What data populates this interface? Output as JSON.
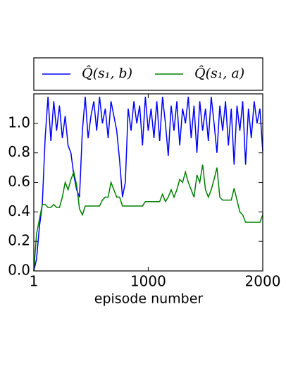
{
  "chart_data": {
    "type": "line",
    "xlabel": "episode number",
    "x": [
      1,
      25,
      50,
      75,
      100,
      125,
      150,
      175,
      200,
      225,
      250,
      275,
      300,
      325,
      350,
      375,
      400,
      425,
      450,
      475,
      500,
      525,
      550,
      575,
      600,
      625,
      650,
      675,
      700,
      725,
      750,
      775,
      800,
      825,
      850,
      875,
      900,
      925,
      950,
      975,
      1000,
      1025,
      1050,
      1075,
      1100,
      1125,
      1150,
      1175,
      1200,
      1225,
      1250,
      1275,
      1300,
      1325,
      1350,
      1375,
      1400,
      1425,
      1450,
      1475,
      1500,
      1525,
      1550,
      1575,
      1600,
      1625,
      1650,
      1675,
      1700,
      1725,
      1750,
      1775,
      1800,
      1825,
      1850,
      1875,
      1900,
      1925,
      1950,
      1975,
      2000
    ],
    "series": [
      {
        "name": "Q̂(s₁, b)",
        "color": "#0000ff",
        "values": [
          0.0,
          0.08,
          0.3,
          0.45,
          0.9,
          1.18,
          0.88,
          1.15,
          0.95,
          1.12,
          0.9,
          1.05,
          0.85,
          0.8,
          0.65,
          0.55,
          0.5,
          0.95,
          1.18,
          0.9,
          1.05,
          1.15,
          0.95,
          1.18,
          1.0,
          1.1,
          0.9,
          1.15,
          1.05,
          0.95,
          0.75,
          0.5,
          0.6,
          1.1,
          0.95,
          1.15,
          1.0,
          1.12,
          0.85,
          1.18,
          0.95,
          1.1,
          0.9,
          1.15,
          0.88,
          1.18,
          1.0,
          0.78,
          1.12,
          0.95,
          1.15,
          0.85,
          1.1,
          1.0,
          1.18,
          0.9,
          1.12,
          0.8,
          1.15,
          0.95,
          1.1,
          0.88,
          1.18,
          1.0,
          0.8,
          1.12,
          0.95,
          1.15,
          0.85,
          1.1,
          0.72,
          1.12,
          0.95,
          1.15,
          0.72,
          1.1,
          0.9,
          1.15,
          1.0,
          1.1,
          0.81
        ]
      },
      {
        "name": "Q̂(s₁, a)",
        "color": "#008000",
        "values": [
          0.0,
          0.25,
          0.35,
          0.45,
          0.45,
          0.43,
          0.43,
          0.45,
          0.43,
          0.43,
          0.5,
          0.6,
          0.55,
          0.62,
          0.67,
          0.58,
          0.42,
          0.38,
          0.44,
          0.44,
          0.44,
          0.44,
          0.44,
          0.44,
          0.48,
          0.5,
          0.5,
          0.6,
          0.55,
          0.5,
          0.5,
          0.44,
          0.44,
          0.44,
          0.44,
          0.44,
          0.44,
          0.44,
          0.44,
          0.47,
          0.47,
          0.47,
          0.47,
          0.47,
          0.47,
          0.52,
          0.47,
          0.5,
          0.55,
          0.5,
          0.55,
          0.62,
          0.6,
          0.67,
          0.6,
          0.55,
          0.5,
          0.65,
          0.6,
          0.72,
          0.55,
          0.5,
          0.55,
          0.62,
          0.7,
          0.5,
          0.48,
          0.48,
          0.48,
          0.48,
          0.56,
          0.48,
          0.4,
          0.38,
          0.33,
          0.33,
          0.33,
          0.33,
          0.33,
          0.33,
          0.38
        ]
      }
    ],
    "xlim": [
      1,
      2000
    ],
    "xticks": [
      1,
      1000,
      2000
    ],
    "ylim": [
      0,
      1.2
    ],
    "yticks": [
      {
        "value": 0,
        "label": "0.0"
      },
      0.2,
      0.4,
      0.6,
      0.8,
      {
        "value": 1,
        "label": "1.0"
      }
    ]
  }
}
